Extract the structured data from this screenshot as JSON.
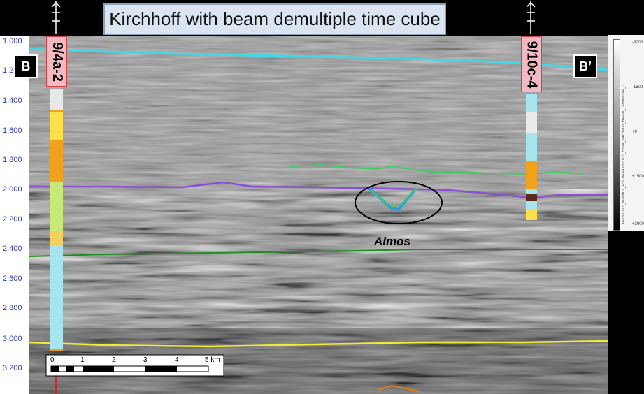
{
  "title": "Kirchhoff with beam demultiple time cube",
  "markers": {
    "left": "B",
    "right": "B’"
  },
  "wells": {
    "left": "9/4a-2",
    "right": "9/10c-4"
  },
  "annotation": "Almos",
  "y_axis": {
    "ticks": [
      "1.000",
      "1.2",
      "1.400",
      "1.600",
      "1.800",
      "2.000",
      "2.200",
      "2.400",
      "2.600",
      "2.800",
      "3.000",
      "3.200"
    ]
  },
  "scale_bar": {
    "ticks": [
      "0",
      "1",
      "2",
      "3",
      "4",
      "5 km"
    ]
  },
  "colorbar": {
    "labels": [
      "-3000",
      "-1500",
      "+0",
      "+1500",
      "+3000"
    ],
    "title": "PGS2012_Macduff_PSDM PGS2012_Final_Kirchhoff_Beam_Demultiple_T"
  },
  "colors": {
    "horizon_cyan": "#3fd9e6",
    "horizon_purple": "#8a4fd6",
    "horizon_green_dark": "#1e8f1e",
    "horizon_green_light": "#44cc6a",
    "horizon_yellow": "#f0ea3a",
    "horizon_orange": "#e07a1a",
    "axis_text": "#2b3fb0"
  }
}
